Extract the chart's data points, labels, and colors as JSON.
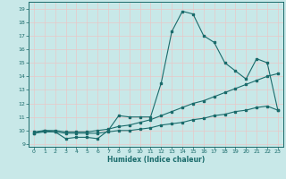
{
  "xlabel": "Humidex (Indice chaleur)",
  "ylabel": "",
  "xlim": [
    -0.5,
    23.5
  ],
  "ylim": [
    8.8,
    19.5
  ],
  "yticks": [
    9,
    10,
    11,
    12,
    13,
    14,
    15,
    16,
    17,
    18,
    19
  ],
  "xticks": [
    0,
    1,
    2,
    3,
    4,
    5,
    6,
    7,
    8,
    9,
    10,
    11,
    12,
    13,
    14,
    15,
    16,
    17,
    18,
    19,
    20,
    21,
    22,
    23
  ],
  "bg_color": "#c8e8e8",
  "line_color": "#1a6b6b",
  "grid_color": "#e8c8c8",
  "line1_x": [
    0,
    1,
    2,
    3,
    4,
    5,
    6,
    7,
    8,
    9,
    10,
    11,
    12,
    13,
    14,
    15,
    16,
    17,
    18,
    19,
    20,
    21,
    22,
    23
  ],
  "line1_y": [
    9.9,
    10.0,
    9.9,
    9.4,
    9.5,
    9.5,
    9.4,
    10.0,
    11.1,
    11.0,
    11.0,
    11.0,
    13.5,
    17.3,
    18.8,
    18.6,
    17.0,
    16.5,
    15.0,
    14.4,
    13.8,
    15.3,
    15.0,
    11.5
  ],
  "line2_x": [
    0,
    1,
    2,
    3,
    4,
    5,
    6,
    7,
    8,
    9,
    10,
    11,
    12,
    13,
    14,
    15,
    16,
    17,
    18,
    19,
    20,
    21,
    22,
    23
  ],
  "line2_y": [
    9.8,
    10.0,
    10.0,
    9.9,
    9.9,
    9.9,
    10.0,
    10.1,
    10.3,
    10.4,
    10.6,
    10.8,
    11.1,
    11.4,
    11.7,
    12.0,
    12.2,
    12.5,
    12.8,
    13.1,
    13.4,
    13.7,
    14.0,
    14.2
  ],
  "line3_x": [
    0,
    1,
    2,
    3,
    4,
    5,
    6,
    7,
    8,
    9,
    10,
    11,
    12,
    13,
    14,
    15,
    16,
    17,
    18,
    19,
    20,
    21,
    22,
    23
  ],
  "line3_y": [
    9.8,
    9.9,
    9.9,
    9.8,
    9.8,
    9.8,
    9.8,
    9.9,
    10.0,
    10.0,
    10.1,
    10.2,
    10.4,
    10.5,
    10.6,
    10.8,
    10.9,
    11.1,
    11.2,
    11.4,
    11.5,
    11.7,
    11.8,
    11.5
  ]
}
